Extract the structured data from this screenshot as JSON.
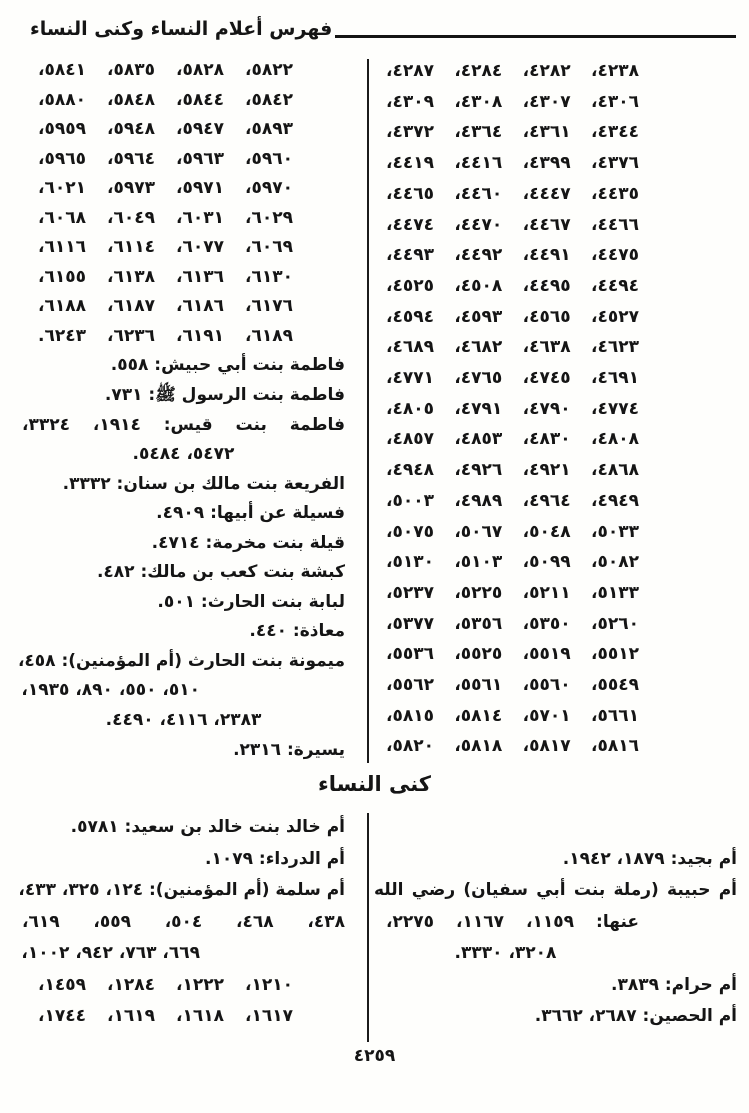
{
  "colors": {
    "ink": "#141414",
    "paper": "#fefefc"
  },
  "header": {
    "title": "فهرس أعلام النساء وكنى النساء"
  },
  "index_top": {
    "column_right": {
      "lines": [
        {
          "kind": "num",
          "text": "٤٢٣٨، ٤٢٨٢، ٤٢٨٤، ٤٢٨٧،"
        },
        {
          "kind": "num",
          "text": "٤٣٠٦، ٤٣٠٧، ٤٣٠٨، ٤٣٠٩،"
        },
        {
          "kind": "num",
          "text": "٤٣٤٤، ٤٣٦١، ٤٣٦٤، ٤٣٧٢،"
        },
        {
          "kind": "num",
          "text": "٤٣٧٦، ٤٣٩٩، ٤٤١٦، ٤٤١٩،"
        },
        {
          "kind": "num",
          "text": "٤٤٣٥، ٤٤٤٧، ٤٤٦٠، ٤٤٦٥،"
        },
        {
          "kind": "num",
          "text": "٤٤٦٦، ٤٤٦٧، ٤٤٧٠، ٤٤٧٤،"
        },
        {
          "kind": "num",
          "text": "٤٤٧٥، ٤٤٩١، ٤٤٩٢، ٤٤٩٣،"
        },
        {
          "kind": "num",
          "text": "٤٤٩٤، ٤٤٩٥، ٤٥٠٨، ٤٥٢٥،"
        },
        {
          "kind": "num",
          "text": "٤٥٢٧، ٤٥٦٥، ٤٥٩٣، ٤٥٩٤،"
        },
        {
          "kind": "num",
          "text": "٤٦٢٣، ٤٦٣٨، ٤٦٨٢، ٤٦٨٩،"
        },
        {
          "kind": "num",
          "text": "٤٦٩١، ٤٧٤٥، ٤٧٦٥، ٤٧٧١،"
        },
        {
          "kind": "num",
          "text": "٤٧٧٤، ٤٧٩٠، ٤٧٩١، ٤٨٠٥،"
        },
        {
          "kind": "num",
          "text": "٤٨٠٨، ٤٨٣٠، ٤٨٥٣، ٤٨٥٧،"
        },
        {
          "kind": "num",
          "text": "٤٨٦٨، ٤٩٢١، ٤٩٢٦، ٤٩٤٨،"
        },
        {
          "kind": "num",
          "text": "٤٩٤٩، ٤٩٦٤، ٤٩٨٩، ٥٠٠٣،"
        },
        {
          "kind": "num",
          "text": "٥٠٣٣، ٥٠٤٨، ٥٠٦٧، ٥٠٧٥،"
        },
        {
          "kind": "num",
          "text": "٥٠٨٢، ٥٠٩٩، ٥١٠٣، ٥١٣٠،"
        },
        {
          "kind": "num",
          "text": "٥١٣٣، ٥٢١١، ٥٢٢٥، ٥٢٣٧،"
        },
        {
          "kind": "num",
          "text": "٥٢٦٠، ٥٣٥٠، ٥٣٥٦، ٥٣٧٧،"
        },
        {
          "kind": "num",
          "text": "٥٥١٢، ٥٥١٩، ٥٥٢٥، ٥٥٣٦،"
        },
        {
          "kind": "num",
          "text": "٥٥٤٩، ٥٥٦٠، ٥٥٦١، ٥٥٦٢،"
        },
        {
          "kind": "num",
          "text": "٥٦٦١، ٥٧٠١، ٥٨١٤، ٥٨١٥،"
        },
        {
          "kind": "num",
          "text": "٥٨١٦، ٥٨١٧، ٥٨١٨، ٥٨٢٠،"
        }
      ]
    },
    "column_left": {
      "lines": [
        {
          "kind": "num",
          "text": "٥٨٢٢، ٥٨٢٨، ٥٨٣٥، ٥٨٤١،"
        },
        {
          "kind": "num",
          "text": "٥٨٤٢، ٥٨٤٤، ٥٨٤٨، ٥٨٨٠،"
        },
        {
          "kind": "num",
          "text": "٥٨٩٣، ٥٩٤٧، ٥٩٤٨، ٥٩٥٩،"
        },
        {
          "kind": "num",
          "text": "٥٩٦٠، ٥٩٦٣، ٥٩٦٤، ٥٩٦٥،"
        },
        {
          "kind": "num",
          "text": "٥٩٧٠، ٥٩٧١، ٥٩٧٣، ٦٠٢١،"
        },
        {
          "kind": "num",
          "text": "٦٠٢٩، ٦٠٣١، ٦٠٤٩، ٦٠٦٨،"
        },
        {
          "kind": "num",
          "text": "٦٠٦٩، ٦٠٧٧، ٦١١٤، ٦١١٦،"
        },
        {
          "kind": "num",
          "text": "٦١٣٠، ٦١٣٦، ٦١٣٨، ٦١٥٥،"
        },
        {
          "kind": "num",
          "text": "٦١٧٦، ٦١٨٦، ٦١٨٧، ٦١٨٨،"
        },
        {
          "kind": "num",
          "text": "٦١٨٩، ٦١٩١، ٦٢٣٦، ٦٢٤٣."
        },
        {
          "kind": "entry",
          "text": "فاطمة بنت أبي حبيش: ٥٥٨."
        },
        {
          "kind": "entry",
          "text": "فاطمة بنت الرسول ﷺ: ٧٣١."
        },
        {
          "kind": "just",
          "text": "فاطمة بنت قيس: ١٩١٤، ٣٣٢٤،"
        },
        {
          "kind": "center",
          "text": "٥٤٧٢، ٥٤٨٤."
        },
        {
          "kind": "entry",
          "text": "الفريعة بنت مالك بن سنان: ٣٣٣٢."
        },
        {
          "kind": "entry",
          "text": "فسيلة عن أبيها: ٤٩٠٩."
        },
        {
          "kind": "entry",
          "text": "قيلة بنت مخرمة: ٤٧١٤."
        },
        {
          "kind": "entry",
          "text": "كبشة بنت كعب بن مالك: ٤٨٢."
        },
        {
          "kind": "entry",
          "text": "لبابة بنت الحارث: ٥٠١."
        },
        {
          "kind": "entry",
          "text": "معاذة: ٤٤٠."
        },
        {
          "kind": "just",
          "text": "ميمونة بنت الحارث (أم المؤمنين): ٤٥٨،"
        },
        {
          "kind": "indent",
          "text": "٥١٠، ٥٥٠، ٨٩٠، ١٩٣٥،"
        },
        {
          "kind": "center",
          "text": "٢٣٨٣، ٤١١٦، ٤٤٩٠."
        },
        {
          "kind": "entry",
          "text": "يسيرة: ٢٣١٦."
        }
      ]
    }
  },
  "section_heading": "كنى النساء",
  "index_bottom": {
    "column_right": {
      "lines": [
        {
          "kind": "entry",
          "text": "أم بجيد: ١٨٧٩، ١٩٤٢."
        },
        {
          "kind": "just",
          "text": "أم حبيبة (رملة بنت أبي سفيان) رضي الله"
        },
        {
          "kind": "indent",
          "text": "عنها: ١١٥٩، ١١٦٧، ٢٢٧٥،"
        },
        {
          "kind": "center",
          "text": "٣٢٠٨، ٣٣٣٠."
        },
        {
          "kind": "entry",
          "text": "أم حرام: ٣٨٣٩."
        },
        {
          "kind": "entry",
          "text": "أم الحصين: ٢٦٨٧، ٣٦٦٢."
        }
      ]
    },
    "column_left": {
      "lines": [
        {
          "kind": "entry",
          "text": "أم خالد بنت خالد بن سعيد: ٥٧٨١."
        },
        {
          "kind": "entry",
          "text": "أم الدرداء: ١٠٧٩."
        },
        {
          "kind": "just",
          "text": "أم سلمة (أم المؤمنين): ١٢٤، ٣٢٥، ٤٣٣،"
        },
        {
          "kind": "just",
          "text": "٤٣٨، ٤٦٨، ٥٠٤، ٥٥٩، ٦١٩،"
        },
        {
          "kind": "indent",
          "text": "٦٦٩، ٧٦٣، ٩٤٢، ١٠٠٢،"
        },
        {
          "kind": "num",
          "text": "١٢١٠، ١٢٢٢، ١٢٨٤، ١٤٥٩،"
        },
        {
          "kind": "num",
          "text": "١٦١٧، ١٦١٨، ١٦١٩، ١٧٤٤،"
        }
      ]
    }
  },
  "page_number": "٤٢٥٩"
}
